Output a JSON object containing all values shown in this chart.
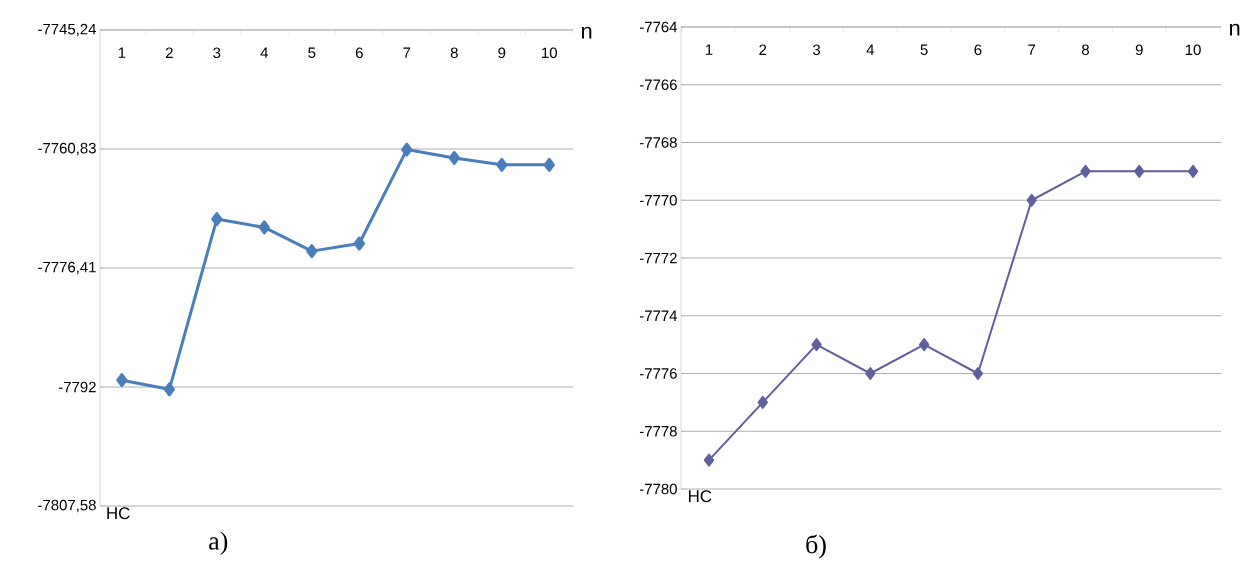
{
  "chart_data": [
    {
      "type": "line",
      "title": "а)",
      "xlabel": "n",
      "annotations": [
        "НС"
      ],
      "categories": [
        "1",
        "2",
        "3",
        "4",
        "5",
        "6",
        "7",
        "8",
        "9",
        "10"
      ],
      "series": [
        {
          "color": "#4a7ebb",
          "values": [
            -7791.1,
            -7792.3,
            -7770.0,
            -7771.1,
            -7774.2,
            -7773.2,
            -7760.9,
            -7762.0,
            -7762.9,
            -7762.9
          ]
        }
      ],
      "ylim": [
        -7807.58,
        -7745.24
      ],
      "yticks": [
        {
          "value": -7807.58,
          "label": "-7807,58"
        },
        {
          "value": -7792,
          "label": "-7792"
        },
        {
          "value": -7776.41,
          "label": "-7776,41"
        },
        {
          "value": -7760.83,
          "label": "-7760,83"
        },
        {
          "value": -7745.24,
          "label": "-7745,24"
        }
      ],
      "grid": "y",
      "marker": "diamond",
      "line_style": "solid"
    },
    {
      "type": "line",
      "title": "б)",
      "xlabel": "n",
      "annotations": [
        "НС"
      ],
      "categories": [
        "1",
        "2",
        "3",
        "4",
        "5",
        "6",
        "7",
        "8",
        "9",
        "10"
      ],
      "series": [
        {
          "color": "#5f5f9c",
          "values": [
            -7779,
            -7777,
            -7775,
            -7776,
            -7775,
            -7776,
            -7770,
            -7769,
            -7769,
            -7769
          ]
        }
      ],
      "ylim": [
        -7780,
        -7764
      ],
      "yticks": [
        -7780,
        -7778,
        -7776,
        -7774,
        -7772,
        -7770,
        -7768,
        -7766,
        -7764
      ],
      "grid": "y",
      "marker": "diamond",
      "line_style": "solid"
    }
  ]
}
